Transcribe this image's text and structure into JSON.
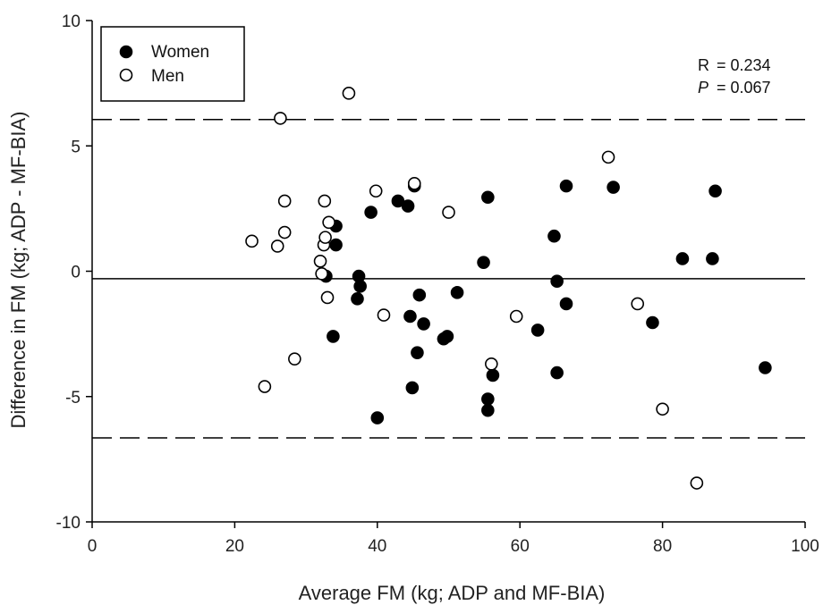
{
  "chart_data": {
    "type": "scatter",
    "xlabel": "Average FM  (kg; ADP and MF-BIA)",
    "ylabel": "Difference in FM (kg; ADP - MF-BIA)",
    "xlim": [
      0,
      100
    ],
    "ylim": [
      -10,
      10
    ],
    "x_ticks": [
      "0",
      "20",
      "40",
      "60",
      "80",
      "100"
    ],
    "y_ticks": [
      "-10",
      "-5",
      "0",
      "5",
      "10"
    ],
    "grid": false,
    "legend_position": "top-left",
    "legend": [
      {
        "label": "Women",
        "marker": "filled-circle"
      },
      {
        "label": "Men",
        "marker": "open-circle"
      }
    ],
    "annotations": {
      "r_label": "R",
      "r_value": "= 0.234",
      "p_label": "P",
      "p_value": "= 0.067"
    },
    "reference_lines": [
      {
        "y": 6.05,
        "style": "dashed"
      },
      {
        "y": -0.3,
        "style": "solid"
      },
      {
        "y": -6.65,
        "style": "dashed"
      }
    ],
    "series": [
      {
        "name": "Women",
        "marker": "filled",
        "points": [
          [
            32.8,
            -0.2
          ],
          [
            33.8,
            -2.6
          ],
          [
            34.2,
            1.8
          ],
          [
            34.2,
            1.05
          ],
          [
            37.2,
            -1.1
          ],
          [
            37.4,
            -0.2
          ],
          [
            37.6,
            -0.6
          ],
          [
            39.1,
            2.35
          ],
          [
            40.0,
            -5.85
          ],
          [
            42.9,
            2.8
          ],
          [
            44.3,
            2.6
          ],
          [
            44.6,
            -1.8
          ],
          [
            44.9,
            -4.65
          ],
          [
            45.2,
            3.4
          ],
          [
            45.6,
            -3.25
          ],
          [
            45.9,
            -0.95
          ],
          [
            46.5,
            -2.1
          ],
          [
            49.3,
            -2.7
          ],
          [
            49.8,
            -2.6
          ],
          [
            51.2,
            -0.85
          ],
          [
            54.9,
            0.35
          ],
          [
            55.5,
            2.95
          ],
          [
            55.5,
            -5.1
          ],
          [
            55.5,
            -5.55
          ],
          [
            56.2,
            -4.15
          ],
          [
            62.5,
            -2.35
          ],
          [
            64.8,
            1.4
          ],
          [
            65.2,
            -0.4
          ],
          [
            65.2,
            -4.05
          ],
          [
            66.5,
            3.4
          ],
          [
            66.5,
            -1.3
          ],
          [
            73.1,
            3.35
          ],
          [
            78.6,
            -2.05
          ],
          [
            82.8,
            0.5
          ],
          [
            87.0,
            0.5
          ],
          [
            87.4,
            3.2
          ],
          [
            94.4,
            -3.85
          ]
        ]
      },
      {
        "name": "Men",
        "marker": "open",
        "points": [
          [
            22.4,
            1.2
          ],
          [
            24.2,
            -4.6
          ],
          [
            26.0,
            1.0
          ],
          [
            26.4,
            6.1
          ],
          [
            27.0,
            1.55
          ],
          [
            27.0,
            2.8
          ],
          [
            28.4,
            -3.5
          ],
          [
            32.0,
            0.4
          ],
          [
            32.2,
            -0.1
          ],
          [
            32.5,
            1.05
          ],
          [
            32.6,
            2.8
          ],
          [
            32.7,
            1.35
          ],
          [
            33.0,
            -1.05
          ],
          [
            33.2,
            1.95
          ],
          [
            36.0,
            7.1
          ],
          [
            39.8,
            3.2
          ],
          [
            40.9,
            -1.75
          ],
          [
            45.2,
            3.5
          ],
          [
            50.0,
            2.35
          ],
          [
            56.0,
            -3.7
          ],
          [
            59.5,
            -1.8
          ],
          [
            72.4,
            4.55
          ],
          [
            76.5,
            -1.3
          ],
          [
            80.0,
            -5.5
          ],
          [
            84.8,
            -8.45
          ]
        ]
      }
    ]
  }
}
